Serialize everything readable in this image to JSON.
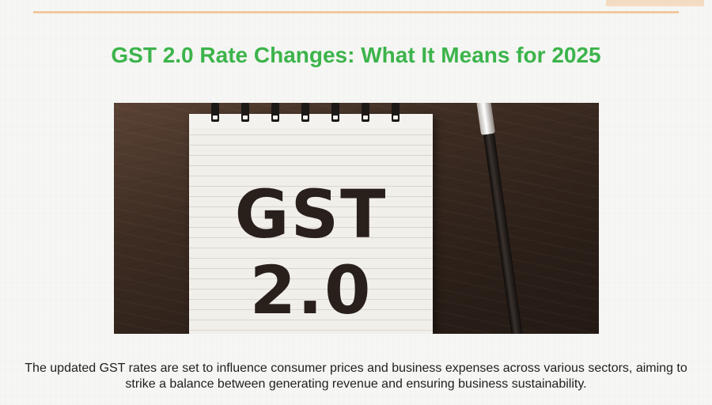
{
  "article": {
    "title": "GST 2.0 Rate Changes: What It Means for 2025",
    "image": {
      "notepad_line1": "GST",
      "notepad_line2": "2.0"
    },
    "caption": "The updated GST rates are set to influence consumer prices and business expenses across various sectors, aiming to strike a balance between generating revenue and ensuring business sustainability."
  },
  "colors": {
    "title": "#3cb44b",
    "accent_line": "#f0c9a0",
    "text": "#1f1f1f"
  }
}
